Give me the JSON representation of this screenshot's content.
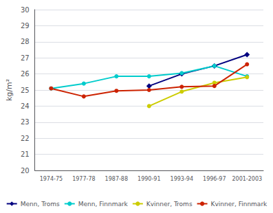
{
  "chart_data": {
    "type": "line",
    "categories": [
      "1974-75",
      "1977-78",
      "1987-88",
      "1990-91",
      "1993-94",
      "1996-97",
      "2001-2003"
    ],
    "series": [
      {
        "name": "Menn, Troms",
        "color": "#00007F",
        "marker": "diamond",
        "values": [
          null,
          null,
          null,
          25.25,
          26.0,
          26.5,
          27.2
        ]
      },
      {
        "name": "Menn, Finnmark",
        "color": "#00CCCC",
        "marker": "circle",
        "values": [
          25.1,
          25.4,
          25.85,
          25.85,
          26.05,
          26.5,
          25.85
        ]
      },
      {
        "name": "Kvinner, Troms",
        "color": "#CCCC00",
        "marker": "circle",
        "values": [
          null,
          null,
          null,
          24.0,
          24.9,
          25.45,
          25.8
        ]
      },
      {
        "name": "Kvinner, Finnmark",
        "color": "#CC2200",
        "marker": "circle",
        "values": [
          25.1,
          24.6,
          24.95,
          25.0,
          25.2,
          25.25,
          26.6
        ]
      }
    ],
    "ylabel": "kg/m²",
    "ylim": [
      20,
      30
    ],
    "yticks": [
      20,
      21,
      22,
      23,
      24,
      25,
      26,
      27,
      28,
      29,
      30
    ],
    "grid": true,
    "legend": "bottom"
  }
}
